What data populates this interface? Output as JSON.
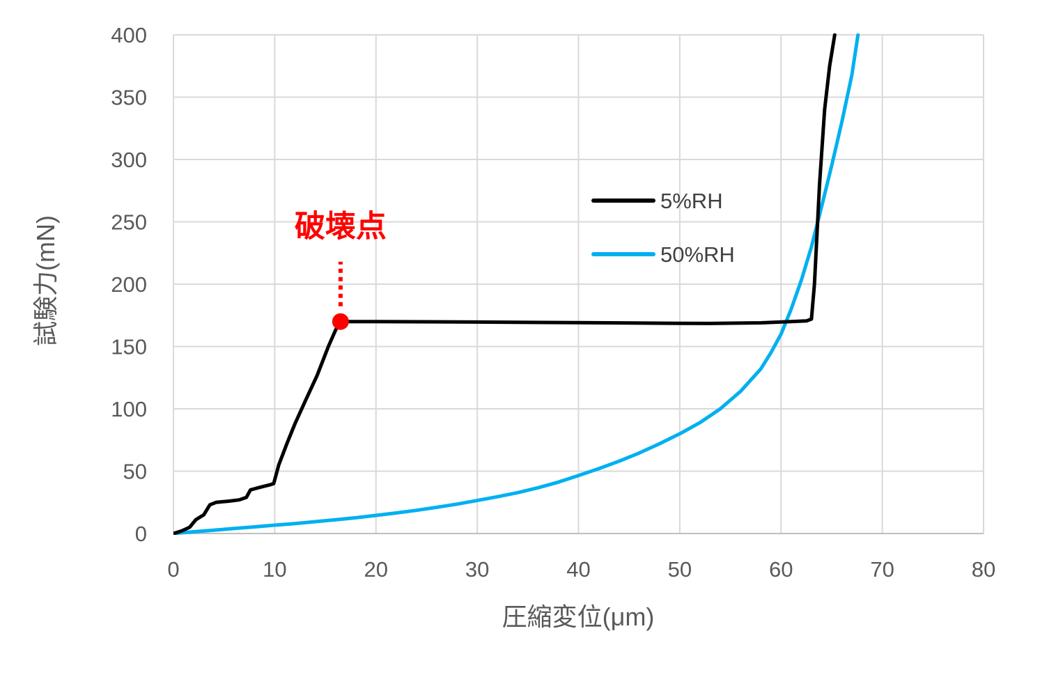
{
  "chart_data": {
    "type": "line",
    "title": "",
    "xlabel": "圧縮変位(μm)",
    "ylabel": "試験力(mN)",
    "xlim": [
      0,
      80
    ],
    "ylim": [
      0,
      400
    ],
    "x_ticks": [
      "0",
      "10",
      "20",
      "30",
      "40",
      "50",
      "60",
      "70",
      "80"
    ],
    "y_ticks": [
      "0",
      "50",
      "100",
      "150",
      "200",
      "250",
      "300",
      "350",
      "400"
    ],
    "grid": true,
    "legend_position": "right",
    "series": [
      {
        "name": "5%RH",
        "color": "#000000",
        "points": [
          [
            0,
            0
          ],
          [
            0.8,
            2
          ],
          [
            1.6,
            5
          ],
          [
            2.2,
            11
          ],
          [
            3.0,
            15
          ],
          [
            3.6,
            23
          ],
          [
            4.2,
            25
          ],
          [
            5.5,
            26
          ],
          [
            6.5,
            27
          ],
          [
            7.2,
            29
          ],
          [
            7.6,
            35
          ],
          [
            8.5,
            37
          ],
          [
            9.5,
            39
          ],
          [
            9.9,
            40
          ],
          [
            10.4,
            55
          ],
          [
            11.2,
            72
          ],
          [
            12.0,
            88
          ],
          [
            13.0,
            106
          ],
          [
            14.2,
            127
          ],
          [
            15.3,
            150
          ],
          [
            16.0,
            163
          ],
          [
            16.5,
            170
          ],
          [
            20,
            170
          ],
          [
            30,
            169.6
          ],
          [
            40,
            169.1
          ],
          [
            50,
            168.6
          ],
          [
            53,
            168.5
          ],
          [
            58,
            169.0
          ],
          [
            62.5,
            170.5
          ],
          [
            63.0,
            172
          ],
          [
            63.3,
            200
          ],
          [
            63.8,
            280
          ],
          [
            64.3,
            340
          ],
          [
            64.8,
            375
          ],
          [
            65.3,
            400
          ]
        ]
      },
      {
        "name": "50%RH",
        "color": "#00b0f0",
        "points": [
          [
            0,
            0
          ],
          [
            2,
            1.4
          ],
          [
            4,
            2.6
          ],
          [
            6,
            4
          ],
          [
            8,
            5.3
          ],
          [
            10,
            6.7
          ],
          [
            12,
            8
          ],
          [
            14,
            9.5
          ],
          [
            16,
            11
          ],
          [
            18,
            12.6
          ],
          [
            20,
            14.5
          ],
          [
            22,
            16.5
          ],
          [
            24,
            18.6
          ],
          [
            26,
            21
          ],
          [
            28,
            23.6
          ],
          [
            30,
            26.5
          ],
          [
            32,
            29.5
          ],
          [
            34,
            32.8
          ],
          [
            36,
            36.7
          ],
          [
            38,
            41.2
          ],
          [
            40,
            46.5
          ],
          [
            42,
            52
          ],
          [
            44,
            58
          ],
          [
            46,
            64.6
          ],
          [
            48,
            72
          ],
          [
            50,
            80
          ],
          [
            52,
            89
          ],
          [
            54,
            100
          ],
          [
            56,
            114
          ],
          [
            58,
            132
          ],
          [
            59,
            145
          ],
          [
            60,
            160
          ],
          [
            61,
            180
          ],
          [
            62,
            203
          ],
          [
            63,
            230
          ],
          [
            64,
            262
          ],
          [
            65,
            295
          ],
          [
            66,
            330
          ],
          [
            67,
            368
          ],
          [
            67.6,
            400
          ]
        ]
      }
    ],
    "annotations": [
      {
        "label": "破壊点",
        "x": 16.5,
        "y": 170,
        "color": "#ff0000",
        "marker": "circle",
        "leader": "dotted-vertical"
      }
    ]
  }
}
